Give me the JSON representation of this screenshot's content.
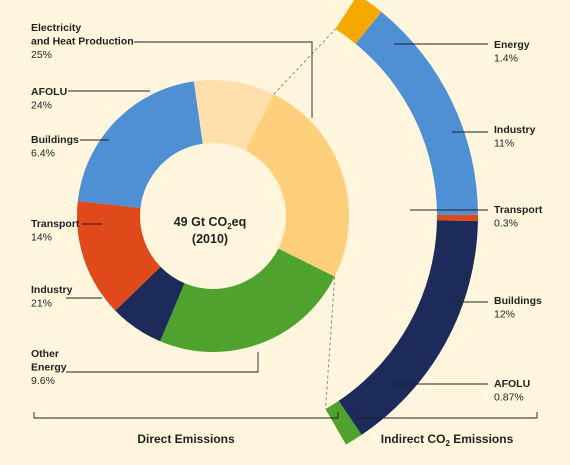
{
  "chart_data": [
    {
      "type": "pie",
      "title": "Direct Emissions",
      "center_label": {
        "main": "49 Gt CO",
        "sub": "2",
        "tail": "eq",
        "line2": "(2010)"
      },
      "slices": [
        {
          "name": "Electricity and Heat Production",
          "name_lines": [
            "Electricity",
            "and Heat Production"
          ],
          "value": 25,
          "label": "25%",
          "color": "#ffcf7c"
        },
        {
          "name": "AFOLU",
          "name_lines": [
            "AFOLU"
          ],
          "value": 24,
          "label": "24%",
          "color": "#4fa22e"
        },
        {
          "name": "Buildings",
          "name_lines": [
            "Buildings"
          ],
          "value": 6.4,
          "label": "6.4%",
          "color": "#1c2b5a"
        },
        {
          "name": "Transport",
          "name_lines": [
            "Transport"
          ],
          "value": 14,
          "label": "14%",
          "color": "#e04a1a"
        },
        {
          "name": "Industry",
          "name_lines": [
            "Industry"
          ],
          "value": 21,
          "label": "21%",
          "color": "#4f8fd4"
        },
        {
          "name": "Other Energy",
          "name_lines": [
            "Other",
            "Energy"
          ],
          "value": 9.6,
          "label": "9.6%",
          "color": "#ffe0ac"
        }
      ]
    },
    {
      "type": "bar",
      "title_parts": {
        "main": "Indirect CO",
        "sub": "2",
        "tail": " Emissions"
      },
      "segments": [
        {
          "name": "Energy",
          "value": 1.4,
          "label": "1.4%",
          "color": "#f5a800"
        },
        {
          "name": "Industry",
          "value": 11,
          "label": "11%",
          "color": "#4f8fd4"
        },
        {
          "name": "Transport",
          "value": 0.3,
          "label": "0.3%",
          "color": "#e04a1a"
        },
        {
          "name": "Buildings",
          "value": 12,
          "label": "12%",
          "color": "#1c2b5a"
        },
        {
          "name": "AFOLU",
          "value": 0.87,
          "label": "0.87%",
          "color": "#4fa22e"
        }
      ]
    }
  ],
  "footer": {
    "direct": "Direct Emissions",
    "indirect_main": "Indirect CO",
    "indirect_sub": "2",
    "indirect_tail": " Emissions"
  }
}
